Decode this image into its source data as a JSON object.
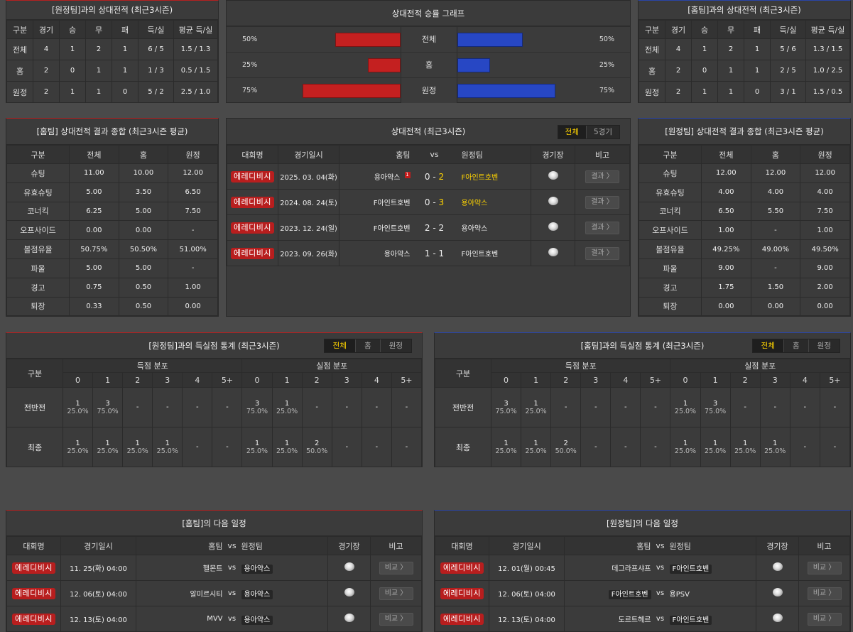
{
  "h2h_away": {
    "title": "[원정팀]과의 상대전적 (최근3시즌)",
    "headers": [
      "구분",
      "경기",
      "승",
      "무",
      "패",
      "득/실",
      "평균 득/실"
    ],
    "rows": [
      [
        "전체",
        "4",
        "1",
        "2",
        "1",
        "6 / 5",
        "1.5 / 1.3"
      ],
      [
        "홈",
        "2",
        "0",
        "1",
        "1",
        "1 / 3",
        "0.5 / 1.5"
      ],
      [
        "원정",
        "2",
        "1",
        "1",
        "0",
        "5 / 2",
        "2.5 / 1.0"
      ]
    ]
  },
  "graph": {
    "title": "상대전적 승률 그래프",
    "colors": {
      "left": "#c42020",
      "right": "#2747c4"
    },
    "rows": [
      {
        "label": "전체",
        "left": "50%",
        "right": "50%",
        "left_value": 50,
        "right_value": 50
      },
      {
        "label": "홈",
        "left": "25%",
        "right": "25%",
        "left_value": 25,
        "right_value": 25
      },
      {
        "label": "원정",
        "left": "75%",
        "right": "75%",
        "left_value": 75,
        "right_value": 75
      }
    ]
  },
  "h2h_home": {
    "title": "[홈팀]과의 상대전적 (최근3시즌)",
    "headers": [
      "구분",
      "경기",
      "승",
      "무",
      "패",
      "득/실",
      "평균 득/실"
    ],
    "rows": [
      [
        "전체",
        "4",
        "1",
        "2",
        "1",
        "5 / 6",
        "1.3 / 1.5"
      ],
      [
        "홈",
        "2",
        "0",
        "1",
        "1",
        "2 / 5",
        "1.0 / 2.5"
      ],
      [
        "원정",
        "2",
        "1",
        "1",
        "0",
        "3 / 1",
        "1.5 / 0.5"
      ]
    ]
  },
  "sum_home": {
    "title": "[홈팀] 상대전적 결과 종합 (최근3시즌 평균)",
    "headers": [
      "구분",
      "전체",
      "홈",
      "원정"
    ],
    "rows": [
      [
        "슈팅",
        "11.00",
        "10.00",
        "12.00"
      ],
      [
        "유효슈팅",
        "5.00",
        "3.50",
        "6.50"
      ],
      [
        "코너킥",
        "6.25",
        "5.00",
        "7.50"
      ],
      [
        "오프사이드",
        "0.00",
        "0.00",
        "-"
      ],
      [
        "볼점유율",
        "50.75%",
        "50.50%",
        "51.00%"
      ],
      [
        "파울",
        "5.00",
        "5.00",
        "-"
      ],
      [
        "경고",
        "0.75",
        "0.50",
        "1.00"
      ],
      [
        "퇴장",
        "0.33",
        "0.50",
        "0.00"
      ]
    ]
  },
  "matches": {
    "title": "상대전적 (최근3시즌)",
    "toggle": [
      "전체",
      "5경기"
    ],
    "headers": {
      "league": "대회명",
      "date": "경기일시",
      "home": "홈팀",
      "vs": "vs",
      "away": "원정팀",
      "venue": "경기장",
      "note": "비고"
    },
    "rows": [
      {
        "league": "에레디비시",
        "date": "2025. 03. 04(화)",
        "home": "용아약스",
        "hs": "0",
        "as": "2",
        "away": "F아인트호벤",
        "card": "1",
        "btn": "결과 〉"
      },
      {
        "league": "에레디비시",
        "date": "2024. 08. 24(토)",
        "home": "F아인트호벤",
        "hs": "0",
        "as": "3",
        "away": "용아약스",
        "card": "",
        "btn": "결과 〉"
      },
      {
        "league": "에레디비시",
        "date": "2023. 12. 24(일)",
        "home": "F아인트호벤",
        "hs": "2",
        "as": "2",
        "away": "용아약스",
        "card": "",
        "btn": "결과 〉"
      },
      {
        "league": "에레디비시",
        "date": "2023. 09. 26(화)",
        "home": "용아약스",
        "hs": "1",
        "as": "1",
        "away": "F아인트호벤",
        "card": "",
        "btn": "결과 〉"
      }
    ]
  },
  "sum_away": {
    "title": "[원정팀] 상대전적 결과 종합 (최근3시즌 평균)",
    "headers": [
      "구분",
      "전체",
      "홈",
      "원정"
    ],
    "rows": [
      [
        "슈팅",
        "12.00",
        "12.00",
        "12.00"
      ],
      [
        "유효슈팅",
        "4.00",
        "4.00",
        "4.00"
      ],
      [
        "코너킥",
        "6.50",
        "5.50",
        "7.50"
      ],
      [
        "오프사이드",
        "1.00",
        "-",
        "1.00"
      ],
      [
        "볼점유율",
        "49.25%",
        "49.00%",
        "49.50%"
      ],
      [
        "파울",
        "9.00",
        "-",
        "9.00"
      ],
      [
        "경고",
        "1.75",
        "1.50",
        "2.00"
      ],
      [
        "퇴장",
        "0.00",
        "0.00",
        "0.00"
      ]
    ]
  },
  "goals_left": {
    "title": "[원정팀]과의 득실점 통계 (최근3시즌)",
    "toggle": [
      "전체",
      "홈",
      "원정"
    ],
    "col_label": "구분",
    "scored_label": "득점 분포",
    "conceded_label": "실점 분포",
    "buckets": [
      "0",
      "1",
      "2",
      "3",
      "4",
      "5+"
    ],
    "rows": [
      {
        "label": "전반전",
        "scored": [
          [
            "1",
            "25.0%"
          ],
          [
            "3",
            "75.0%"
          ],
          [
            "-",
            ""
          ],
          [
            "-",
            ""
          ],
          [
            "-",
            ""
          ],
          [
            "-",
            ""
          ]
        ],
        "conceded": [
          [
            "3",
            "75.0%"
          ],
          [
            "1",
            "25.0%"
          ],
          [
            "-",
            ""
          ],
          [
            "-",
            ""
          ],
          [
            "-",
            ""
          ],
          [
            "-",
            ""
          ]
        ]
      },
      {
        "label": "최종",
        "scored": [
          [
            "1",
            "25.0%"
          ],
          [
            "1",
            "25.0%"
          ],
          [
            "1",
            "25.0%"
          ],
          [
            "1",
            "25.0%"
          ],
          [
            "-",
            ""
          ],
          [
            "-",
            ""
          ]
        ],
        "conceded": [
          [
            "1",
            "25.0%"
          ],
          [
            "1",
            "25.0%"
          ],
          [
            "2",
            "50.0%"
          ],
          [
            "-",
            ""
          ],
          [
            "-",
            ""
          ],
          [
            "-",
            ""
          ]
        ]
      }
    ]
  },
  "goals_right": {
    "title": "[홈팀]과의 득실점 통계 (최근3시즌)",
    "toggle": [
      "전체",
      "홈",
      "원정"
    ],
    "col_label": "구분",
    "scored_label": "득점 분포",
    "conceded_label": "실점 분포",
    "buckets": [
      "0",
      "1",
      "2",
      "3",
      "4",
      "5+"
    ],
    "rows": [
      {
        "label": "전반전",
        "scored": [
          [
            "3",
            "75.0%"
          ],
          [
            "1",
            "25.0%"
          ],
          [
            "-",
            ""
          ],
          [
            "-",
            ""
          ],
          [
            "-",
            ""
          ],
          [
            "-",
            ""
          ]
        ],
        "conceded": [
          [
            "1",
            "25.0%"
          ],
          [
            "3",
            "75.0%"
          ],
          [
            "-",
            ""
          ],
          [
            "-",
            ""
          ],
          [
            "-",
            ""
          ],
          [
            "-",
            ""
          ]
        ]
      },
      {
        "label": "최종",
        "scored": [
          [
            "1",
            "25.0%"
          ],
          [
            "1",
            "25.0%"
          ],
          [
            "2",
            "50.0%"
          ],
          [
            "-",
            ""
          ],
          [
            "-",
            ""
          ],
          [
            "-",
            ""
          ]
        ],
        "conceded": [
          [
            "1",
            "25.0%"
          ],
          [
            "1",
            "25.0%"
          ],
          [
            "1",
            "25.0%"
          ],
          [
            "1",
            "25.0%"
          ],
          [
            "-",
            ""
          ],
          [
            "-",
            ""
          ]
        ]
      }
    ]
  },
  "next_home": {
    "title": "[홈팀]의 다음 일정",
    "headers": {
      "league": "대회명",
      "date": "경기일시",
      "home": "홈팀",
      "vs": "vs",
      "away": "원정팀",
      "venue": "경기장",
      "note": "비고"
    },
    "rows": [
      {
        "league": "에레디비시",
        "date": "11. 25(화) 04:00",
        "home": "헬몬트",
        "away": "용아약스",
        "hl": "away",
        "btn": "비교 〉"
      },
      {
        "league": "에레디비시",
        "date": "12. 06(토) 04:00",
        "home": "알미르시티",
        "away": "용아약스",
        "hl": "away",
        "btn": "비교 〉"
      },
      {
        "league": "에레디비시",
        "date": "12. 13(토) 04:00",
        "home": "MVV",
        "away": "용아약스",
        "hl": "away",
        "btn": "비교 〉"
      }
    ]
  },
  "next_away": {
    "title": "[원정팀]의 다음 일정",
    "headers": {
      "league": "대회명",
      "date": "경기일시",
      "home": "홈팀",
      "vs": "vs",
      "away": "원정팀",
      "venue": "경기장",
      "note": "비고"
    },
    "rows": [
      {
        "league": "에레디비시",
        "date": "12. 01(월) 00:45",
        "home": "데그라프샤프",
        "away": "F아인트호벤",
        "hl": "away",
        "btn": "비교 〉"
      },
      {
        "league": "에레디비시",
        "date": "12. 06(토) 04:00",
        "home": "F아인트호벤",
        "away": "용PSV",
        "hl": "home",
        "btn": "비교 〉"
      },
      {
        "league": "에레디비시",
        "date": "12. 13(토) 04:00",
        "home": "도르트헤르",
        "away": "F아인트호벤",
        "hl": "away",
        "btn": "비교 〉"
      }
    ]
  }
}
